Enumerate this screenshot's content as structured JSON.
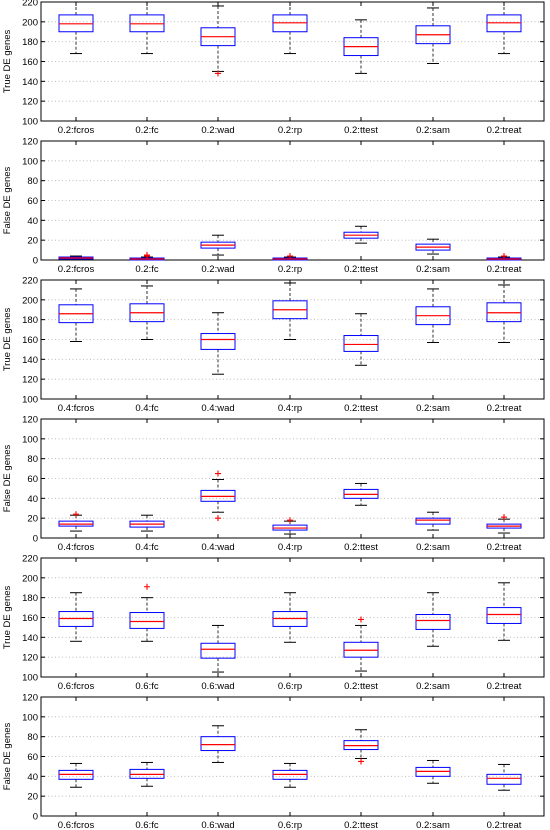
{
  "chart_data": [
    {
      "type": "box",
      "ylabel": "True DE genes",
      "ylim": [
        100,
        220
      ],
      "yticks": [
        100,
        120,
        140,
        160,
        180,
        200,
        220
      ],
      "grid": "horizontal dotted",
      "categories": [
        "0.2:fcros",
        "0.2:fc",
        "0.2:wad",
        "0.2:rp",
        "0.2:ttest",
        "0.2:sam",
        "0.2:treat"
      ],
      "boxes": [
        {
          "min": 168,
          "q1": 190,
          "median": 198,
          "q3": 207,
          "max": 226,
          "outliers": []
        },
        {
          "min": 168,
          "q1": 190,
          "median": 198,
          "q3": 207,
          "max": 226,
          "outliers": []
        },
        {
          "min": 150,
          "q1": 176,
          "median": 185,
          "q3": 194,
          "max": 216,
          "outliers": [
            148
          ]
        },
        {
          "min": 168,
          "q1": 190,
          "median": 199,
          "q3": 207,
          "max": 226,
          "outliers": []
        },
        {
          "min": 148,
          "q1": 166,
          "median": 175,
          "q3": 184,
          "max": 202,
          "outliers": []
        },
        {
          "min": 158,
          "q1": 178,
          "median": 187,
          "q3": 196,
          "max": 214,
          "outliers": []
        },
        {
          "min": 168,
          "q1": 190,
          "median": 199,
          "q3": 207,
          "max": 226,
          "outliers": []
        }
      ]
    },
    {
      "type": "box",
      "ylabel": "False DE genes",
      "ylim": [
        0,
        120
      ],
      "yticks": [
        0,
        20,
        40,
        60,
        80,
        100,
        120
      ],
      "grid": "horizontal dotted",
      "categories": [
        "0.2:fcros",
        "0.2:fc",
        "0.2:wad",
        "0.2:rp",
        "0.2:ttest",
        "0.2:sam",
        "0.2:treat"
      ],
      "boxes": [
        {
          "min": 0,
          "q1": 1,
          "median": 2,
          "q3": 3,
          "max": 4,
          "outliers": []
        },
        {
          "min": 0,
          "q1": 0,
          "median": 1,
          "q3": 2,
          "max": 3,
          "outliers": [
            4,
            5
          ]
        },
        {
          "min": 5,
          "q1": 12,
          "median": 15,
          "q3": 18,
          "max": 25,
          "outliers": []
        },
        {
          "min": 0,
          "q1": 0,
          "median": 1,
          "q3": 2,
          "max": 3,
          "outliers": [
            4
          ]
        },
        {
          "min": 17,
          "q1": 22,
          "median": 25,
          "q3": 28,
          "max": 34,
          "outliers": []
        },
        {
          "min": 6,
          "q1": 10,
          "median": 13,
          "q3": 16,
          "max": 21,
          "outliers": []
        },
        {
          "min": 0,
          "q1": 0,
          "median": 1,
          "q3": 2,
          "max": 3,
          "outliers": [
            4
          ]
        }
      ]
    },
    {
      "type": "box",
      "ylabel": "True DE genes",
      "ylim": [
        100,
        220
      ],
      "yticks": [
        100,
        120,
        140,
        160,
        180,
        200,
        220
      ],
      "grid": "horizontal dotted",
      "categories": [
        "0.4:fcros",
        "0.4:fc",
        "0.4:wad",
        "0.4:rp",
        "0.2:ttest",
        "0.2:sam",
        "0.2:treat"
      ],
      "boxes": [
        {
          "min": 158,
          "q1": 177,
          "median": 186,
          "q3": 195,
          "max": 211,
          "outliers": []
        },
        {
          "min": 160,
          "q1": 178,
          "median": 187,
          "q3": 196,
          "max": 214,
          "outliers": []
        },
        {
          "min": 125,
          "q1": 150,
          "median": 160,
          "q3": 166,
          "max": 187,
          "outliers": []
        },
        {
          "min": 160,
          "q1": 181,
          "median": 190,
          "q3": 199,
          "max": 217,
          "outliers": []
        },
        {
          "min": 134,
          "q1": 148,
          "median": 155,
          "q3": 164,
          "max": 186,
          "outliers": []
        },
        {
          "min": 157,
          "q1": 175,
          "median": 184,
          "q3": 193,
          "max": 211,
          "outliers": []
        },
        {
          "min": 157,
          "q1": 178,
          "median": 187,
          "q3": 197,
          "max": 215,
          "outliers": []
        }
      ]
    },
    {
      "type": "box",
      "ylabel": "False DE genes",
      "ylim": [
        0,
        120
      ],
      "yticks": [
        0,
        20,
        40,
        60,
        80,
        100,
        120
      ],
      "grid": "horizontal dotted",
      "categories": [
        "0.4:fcros",
        "0.4:fc",
        "0.4:wad",
        "0.4:rp",
        "0.2:ttest",
        "0.2:sam",
        "0.2:treat"
      ],
      "boxes": [
        {
          "min": 7,
          "q1": 12,
          "median": 14,
          "q3": 17,
          "max": 23,
          "outliers": [
            24
          ]
        },
        {
          "min": 7,
          "q1": 11,
          "median": 14,
          "q3": 17,
          "max": 23,
          "outliers": []
        },
        {
          "min": 26,
          "q1": 37,
          "median": 42,
          "q3": 48,
          "max": 59,
          "outliers": [
            20,
            65
          ]
        },
        {
          "min": 4,
          "q1": 8,
          "median": 10,
          "q3": 13,
          "max": 17,
          "outliers": [
            18
          ]
        },
        {
          "min": 33,
          "q1": 40,
          "median": 44,
          "q3": 49,
          "max": 55,
          "outliers": []
        },
        {
          "min": 8,
          "q1": 14,
          "median": 18,
          "q3": 20,
          "max": 26,
          "outliers": []
        },
        {
          "min": 5,
          "q1": 10,
          "median": 12,
          "q3": 14,
          "max": 19,
          "outliers": [
            21
          ]
        }
      ]
    },
    {
      "type": "box",
      "ylabel": "True DE genes",
      "ylim": [
        100,
        220
      ],
      "yticks": [
        100,
        120,
        140,
        160,
        180,
        200,
        220
      ],
      "grid": "horizontal dotted",
      "categories": [
        "0.6:fcros",
        "0.6:fc",
        "0.6:wad",
        "0.6:rp",
        "0.2:ttest",
        "0.2:sam",
        "0.2:treat"
      ],
      "boxes": [
        {
          "min": 136,
          "q1": 151,
          "median": 159,
          "q3": 166,
          "max": 185,
          "outliers": []
        },
        {
          "min": 136,
          "q1": 149,
          "median": 156,
          "q3": 165,
          "max": 180,
          "outliers": [
            191
          ]
        },
        {
          "min": 105,
          "q1": 119,
          "median": 128,
          "q3": 134,
          "max": 152,
          "outliers": []
        },
        {
          "min": 135,
          "q1": 151,
          "median": 159,
          "q3": 166,
          "max": 185,
          "outliers": []
        },
        {
          "min": 106,
          "q1": 120,
          "median": 127,
          "q3": 135,
          "max": 152,
          "outliers": [
            158
          ]
        },
        {
          "min": 131,
          "q1": 148,
          "median": 157,
          "q3": 163,
          "max": 185,
          "outliers": []
        },
        {
          "min": 137,
          "q1": 154,
          "median": 163,
          "q3": 170,
          "max": 195,
          "outliers": []
        }
      ]
    },
    {
      "type": "box",
      "ylabel": "False DE genes",
      "ylim": [
        0,
        120
      ],
      "yticks": [
        0,
        20,
        40,
        60,
        80,
        100,
        120
      ],
      "grid": "horizontal dotted",
      "categories": [
        "0.6:fcros",
        "0.6:fc",
        "0.6:wad",
        "0.6:rp",
        "0.2:ttest",
        "0.2:sam",
        "0.2:treat"
      ],
      "boxes": [
        {
          "min": 29,
          "q1": 37,
          "median": 42,
          "q3": 46,
          "max": 53,
          "outliers": []
        },
        {
          "min": 30,
          "q1": 38,
          "median": 42,
          "q3": 47,
          "max": 54,
          "outliers": []
        },
        {
          "min": 54,
          "q1": 66,
          "median": 72,
          "q3": 80,
          "max": 91,
          "outliers": []
        },
        {
          "min": 29,
          "q1": 37,
          "median": 42,
          "q3": 46,
          "max": 53,
          "outliers": []
        },
        {
          "min": 58,
          "q1": 67,
          "median": 71,
          "q3": 76,
          "max": 87,
          "outliers": [
            55
          ]
        },
        {
          "min": 33,
          "q1": 40,
          "median": 45,
          "q3": 49,
          "max": 56,
          "outliers": []
        },
        {
          "min": 26,
          "q1": 32,
          "median": 38,
          "q3": 42,
          "max": 52,
          "outliers": []
        }
      ]
    }
  ],
  "colors": {
    "box": "#0000ff",
    "median": "#ff0000",
    "whisker": "#000000",
    "outlier": "#ff0000",
    "grid": "#b0b0b0",
    "axes": "#000000"
  }
}
